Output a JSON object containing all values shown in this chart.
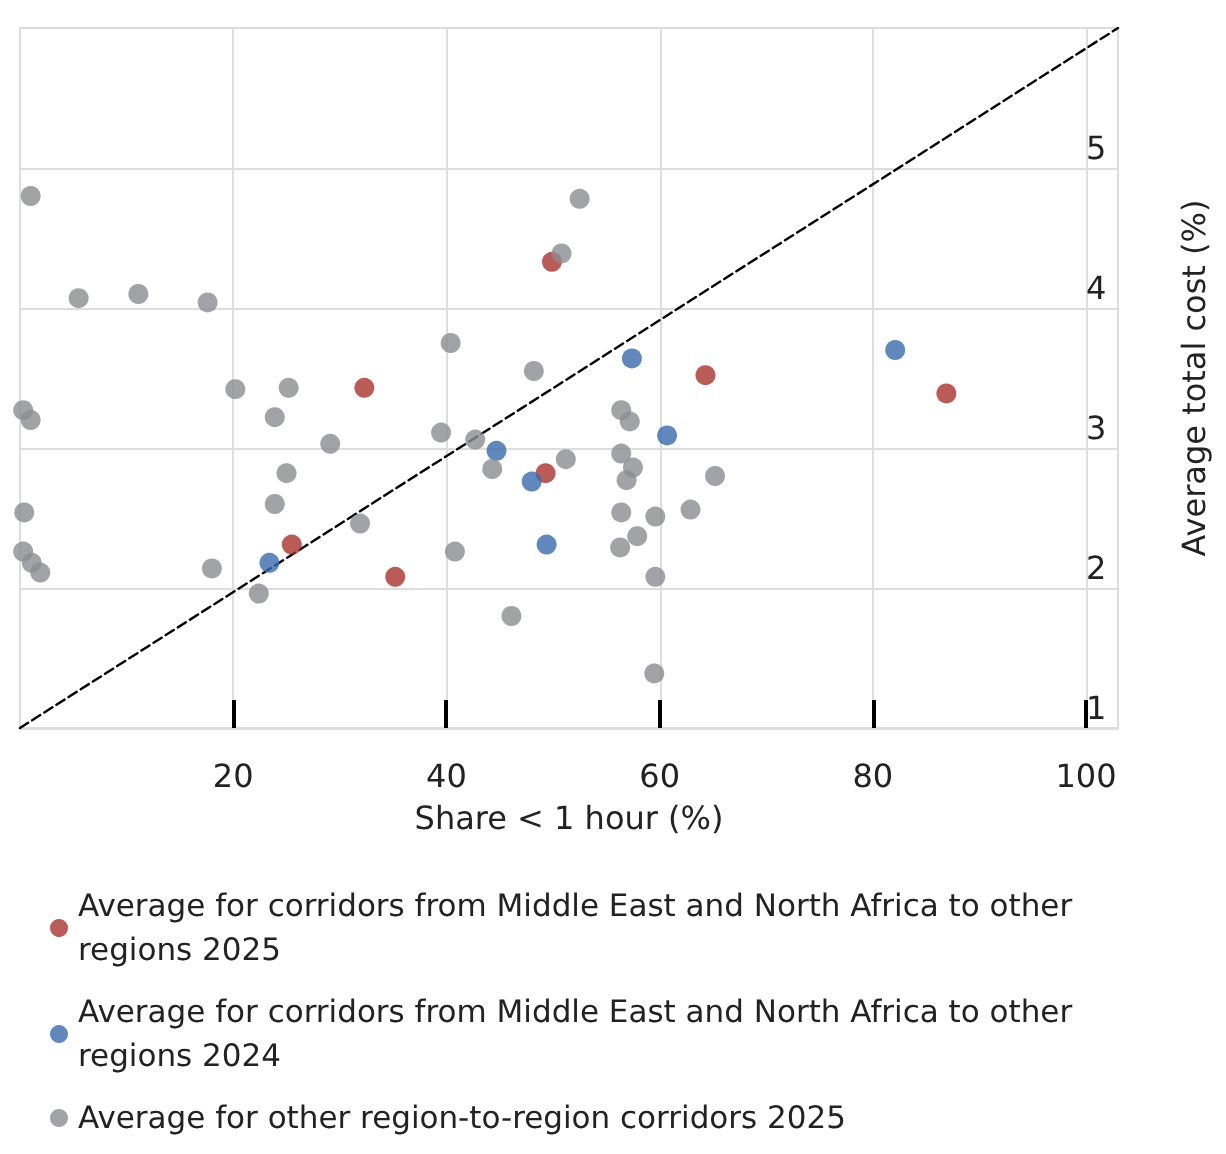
{
  "chart_data": {
    "type": "scatter",
    "xlabel": "Share < 1 hour (%)",
    "ylabel": "Average total cost (%)",
    "xlim": [
      0,
      103
    ],
    "xticks": [
      20,
      40,
      60,
      80,
      100
    ],
    "ylim": [
      1,
      6
    ],
    "yticks": [
      1,
      2,
      3,
      4,
      5
    ],
    "grid": true,
    "legend": "bottom",
    "marker": "circle",
    "series": [
      {
        "name": "Average for corridors from Middle East and North Africa to other regions 2025",
        "color": "#a8322d",
        "x": [
          32.3,
          49.9,
          64.3,
          86.9,
          49.3,
          25.5,
          35.2
        ],
        "values": [
          3.43,
          4.33,
          3.52,
          3.39,
          2.82,
          2.31,
          2.08
        ]
      },
      {
        "name": "Average for corridors from Middle East and North Africa to other regions 2024",
        "color": "#3a6aad",
        "x": [
          57.4,
          82.1,
          44.7,
          48.0,
          49.4,
          23.4,
          60.7
        ],
        "values": [
          3.64,
          3.7,
          2.98,
          2.76,
          2.31,
          2.18,
          3.09
        ]
      },
      {
        "name": "Average for other region-to-region corridors 2025",
        "color": "#8b8c90",
        "x": [
          1.0,
          5.5,
          11.1,
          17.6,
          20.2,
          25.2,
          40.4,
          48.2,
          50.8,
          52.5,
          0.3,
          1.0,
          23.9,
          39.5,
          42.7,
          29.1,
          51.2,
          44.3,
          25.0,
          23.9,
          0.4,
          31.9,
          40.8,
          0.3,
          1.1,
          1.9,
          18.0,
          22.4,
          46.1,
          56.4,
          57.2,
          56.4,
          57.5,
          56.9,
          65.2,
          56.4,
          59.6,
          62.9,
          57.9,
          56.3,
          59.6,
          59.5
        ],
        "values": [
          4.8,
          4.07,
          4.1,
          4.04,
          3.42,
          3.43,
          3.75,
          3.55,
          4.39,
          4.78,
          3.27,
          3.2,
          3.22,
          3.11,
          3.06,
          3.03,
          2.92,
          2.85,
          2.82,
          2.6,
          2.54,
          2.46,
          2.26,
          2.26,
          2.18,
          2.11,
          2.14,
          1.96,
          1.8,
          3.27,
          3.19,
          2.96,
          2.86,
          2.77,
          2.8,
          2.54,
          2.51,
          2.56,
          2.37,
          2.29,
          2.08,
          1.39
        ]
      },
      {
        "type": "line",
        "color": "#000000",
        "line_style": "dashed",
        "marker": "none",
        "x": [
          0,
          103
        ],
        "values": [
          1,
          6
        ]
      }
    ]
  }
}
